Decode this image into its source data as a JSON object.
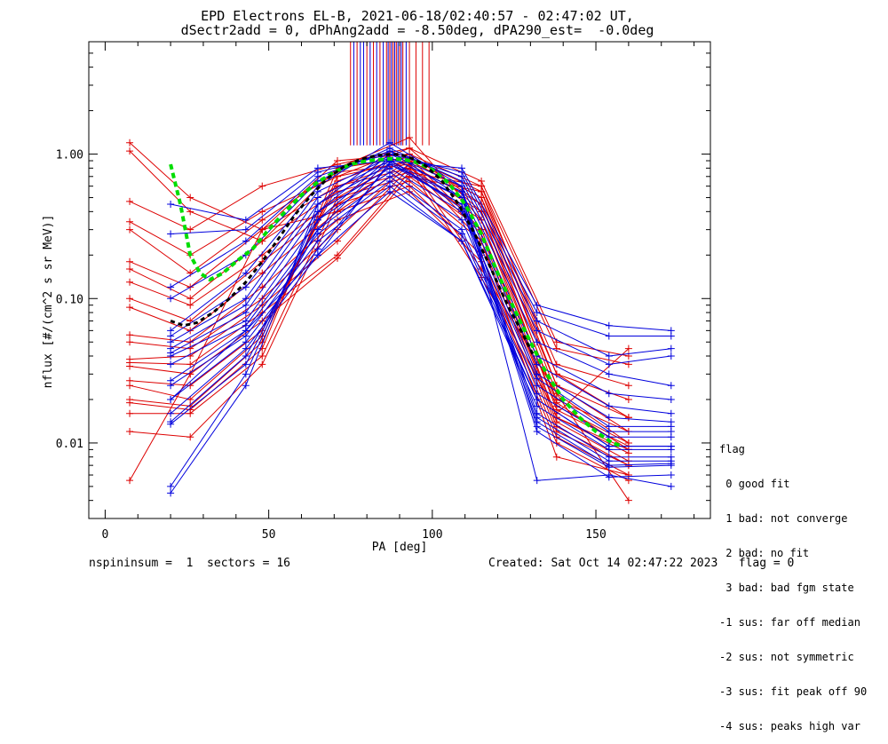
{
  "title_line1": "EPD Electrons EL-B, 2021-06-18/02:40:57 - 02:47:02 UT,",
  "title_line2": "dSectr2add = 0, dPhAng2add = -8.50deg, dPA290_est=  -0.0deg",
  "footer": {
    "left": "nspininsum =  1  sectors = 16",
    "right": "Created: Sat Oct 14 02:47:22 2023   flag = 0"
  },
  "flag_legend": {
    "title": "flag",
    "items": [
      " 0 good fit",
      " 1 bad: not converge",
      " 2 bad: no fit",
      " 3 bad: bad fgm state",
      "-1 sus: far off median",
      "-2 sus: not symmetric",
      "-3 sus: fit peak off 90",
      "-4 sus: peaks high var"
    ]
  },
  "colors": {
    "red": "#dd0000",
    "blue": "#0000dd",
    "green": "#00dd00",
    "black": "#000000"
  },
  "chart_data": {
    "type": "line",
    "xlabel": "PA [deg]",
    "ylabel": "nflux [#/(cm^2 s sr MeV)]",
    "xlim": [
      -5,
      185
    ],
    "ylim": [
      0.003,
      6.0
    ],
    "yscale": "log",
    "xticks": [
      0,
      50,
      100,
      150
    ],
    "yticks": [
      {
        "value": 0.01,
        "label": "0.01"
      },
      {
        "value": 0.1,
        "label": "0.10"
      },
      {
        "value": 1.0,
        "label": "1.00"
      }
    ],
    "x": [
      7.5,
      20,
      26,
      43,
      48,
      65,
      71,
      87,
      93,
      109,
      115,
      132,
      138,
      154,
      160,
      173
    ],
    "x_red": [
      7.5,
      26,
      48,
      71,
      93,
      115,
      138,
      160
    ],
    "x_blue": [
      20,
      43,
      65,
      87,
      109,
      132,
      154,
      173
    ],
    "red_endpoints": [
      [
        1.2,
        0.5,
        0.3,
        0.9,
        1.0,
        0.6,
        0.045,
        0.035
      ],
      [
        1.05,
        0.4,
        0.25,
        0.8,
        0.95,
        0.55,
        0.035,
        0.025
      ],
      [
        0.47,
        0.3,
        0.6,
        0.85,
        1.1,
        0.65,
        0.05,
        0.04
      ],
      [
        0.34,
        0.2,
        0.4,
        0.7,
        0.9,
        0.5,
        0.03,
        0.02
      ],
      [
        0.3,
        0.15,
        0.35,
        0.75,
        0.85,
        0.45,
        0.025,
        0.015
      ],
      [
        0.18,
        0.12,
        0.3,
        0.6,
        0.8,
        0.4,
        0.02,
        0.012
      ],
      [
        0.16,
        0.1,
        0.25,
        0.55,
        0.75,
        0.35,
        0.018,
        0.01
      ],
      [
        0.13,
        0.09,
        0.2,
        0.5,
        0.7,
        0.3,
        0.015,
        0.009
      ],
      [
        0.1,
        0.07,
        0.18,
        0.45,
        0.65,
        0.25,
        0.012,
        0.007
      ],
      [
        0.087,
        0.06,
        0.15,
        0.4,
        0.6,
        0.2,
        0.011,
        0.006
      ],
      [
        0.056,
        0.05,
        0.12,
        0.35,
        0.55,
        0.18,
        0.01,
        0.0055
      ],
      [
        0.05,
        0.045,
        0.1,
        0.3,
        0.85,
        0.16,
        0.022,
        0.004
      ],
      [
        0.038,
        0.04,
        0.09,
        0.25,
        0.8,
        0.14,
        0.016,
        0.045
      ],
      [
        0.036,
        0.035,
        0.08,
        0.2,
        0.75,
        0.6,
        0.03,
        0.015
      ],
      [
        0.034,
        0.03,
        0.07,
        0.19,
        0.7,
        0.55,
        0.025,
        0.012
      ],
      [
        0.027,
        0.025,
        0.06,
        0.6,
        0.9,
        0.5,
        0.022,
        0.01
      ],
      [
        0.025,
        0.02,
        0.055,
        0.65,
        1.0,
        0.45,
        0.019,
        0.009
      ],
      [
        0.02,
        0.018,
        0.05,
        0.7,
        1.1,
        0.4,
        0.017,
        0.0095
      ],
      [
        0.019,
        0.017,
        0.045,
        0.8,
        1.3,
        0.35,
        0.015,
        0.0085
      ],
      [
        0.016,
        0.016,
        0.04,
        0.5,
        0.95,
        0.3,
        0.014,
        0.0075
      ],
      [
        0.012,
        0.011,
        0.035,
        0.45,
        0.9,
        0.28,
        0.013,
        0.007
      ],
      [
        0.0055,
        0.03,
        0.3,
        0.4,
        0.85,
        0.25,
        0.008,
        0.006
      ]
    ],
    "blue_endpoints": [
      [
        0.45,
        0.35,
        0.8,
        0.9,
        0.8,
        0.09,
        0.065,
        0.06
      ],
      [
        0.28,
        0.3,
        0.75,
        1.0,
        0.75,
        0.08,
        0.055,
        0.055
      ],
      [
        0.12,
        0.25,
        0.7,
        1.05,
        0.7,
        0.07,
        0.04,
        0.045
      ],
      [
        0.1,
        0.2,
        0.65,
        1.1,
        0.65,
        0.06,
        0.035,
        0.04
      ],
      [
        0.06,
        0.15,
        0.6,
        1.2,
        0.6,
        0.05,
        0.03,
        0.025
      ],
      [
        0.055,
        0.12,
        0.55,
        0.95,
        0.55,
        0.04,
        0.022,
        0.02
      ],
      [
        0.05,
        0.1,
        0.5,
        0.9,
        0.5,
        0.035,
        0.018,
        0.016
      ],
      [
        0.045,
        0.09,
        0.45,
        0.85,
        0.45,
        0.03,
        0.015,
        0.014
      ],
      [
        0.042,
        0.08,
        0.4,
        0.8,
        0.4,
        0.028,
        0.013,
        0.013
      ],
      [
        0.04,
        0.07,
        0.35,
        0.75,
        0.35,
        0.025,
        0.012,
        0.012
      ],
      [
        0.035,
        0.065,
        0.3,
        0.7,
        0.3,
        0.022,
        0.011,
        0.011
      ],
      [
        0.027,
        0.06,
        0.28,
        0.65,
        0.28,
        0.02,
        0.0095,
        0.0095
      ],
      [
        0.025,
        0.055,
        0.25,
        0.6,
        0.25,
        0.018,
        0.009,
        0.009
      ],
      [
        0.02,
        0.05,
        0.22,
        0.85,
        0.5,
        0.016,
        0.008,
        0.008
      ],
      [
        0.016,
        0.045,
        0.2,
        0.88,
        0.45,
        0.015,
        0.0075,
        0.0075
      ],
      [
        0.014,
        0.04,
        0.3,
        0.92,
        0.42,
        0.014,
        0.007,
        0.0072
      ],
      [
        0.0135,
        0.035,
        0.35,
        0.95,
        0.55,
        0.013,
        0.0068,
        0.007
      ],
      [
        0.005,
        0.03,
        0.4,
        1.0,
        0.6,
        0.0055,
        0.006,
        0.005
      ],
      [
        0.0045,
        0.025,
        0.45,
        1.05,
        0.5,
        0.012,
        0.0058,
        0.006
      ],
      [
        0.02,
        0.06,
        0.2,
        0.55,
        0.25,
        0.02,
        0.0095,
        0.0095
      ]
    ],
    "green_fit": {
      "x": [
        20,
        23,
        26,
        29,
        32,
        36,
        40,
        45,
        50,
        55,
        60,
        65,
        70,
        75,
        80,
        85,
        88,
        91,
        95,
        100,
        105,
        110,
        115,
        120,
        125,
        130,
        135,
        140,
        145,
        150,
        155,
        158
      ],
      "y": [
        0.85,
        0.45,
        0.2,
        0.15,
        0.135,
        0.15,
        0.18,
        0.22,
        0.3,
        0.4,
        0.52,
        0.64,
        0.75,
        0.85,
        0.9,
        0.92,
        0.93,
        0.92,
        0.88,
        0.78,
        0.63,
        0.45,
        0.28,
        0.15,
        0.085,
        0.05,
        0.03,
        0.02,
        0.015,
        0.012,
        0.01,
        0.0095
      ]
    },
    "black_fit": {
      "x": [
        20,
        24,
        28,
        33,
        38,
        43,
        48,
        53,
        58,
        63,
        68,
        73,
        78,
        83,
        88,
        91,
        94,
        98,
        103,
        108,
        113,
        118,
        123,
        128,
        131
      ],
      "y": [
        0.07,
        0.065,
        0.068,
        0.08,
        0.1,
        0.13,
        0.18,
        0.26,
        0.38,
        0.52,
        0.68,
        0.82,
        0.92,
        0.98,
        1.0,
        0.98,
        0.93,
        0.83,
        0.65,
        0.45,
        0.28,
        0.16,
        0.09,
        0.055,
        0.04
      ]
    },
    "top_markers": {
      "ymin": 1.15,
      "red_x": [
        75,
        77,
        80,
        82,
        84,
        86,
        87,
        88,
        89,
        90,
        91,
        93,
        95,
        97,
        99
      ],
      "blue_x": [
        76,
        78,
        79,
        81,
        83,
        85,
        86.5,
        87.5,
        88.5,
        89.5,
        90.5,
        92
      ]
    }
  }
}
